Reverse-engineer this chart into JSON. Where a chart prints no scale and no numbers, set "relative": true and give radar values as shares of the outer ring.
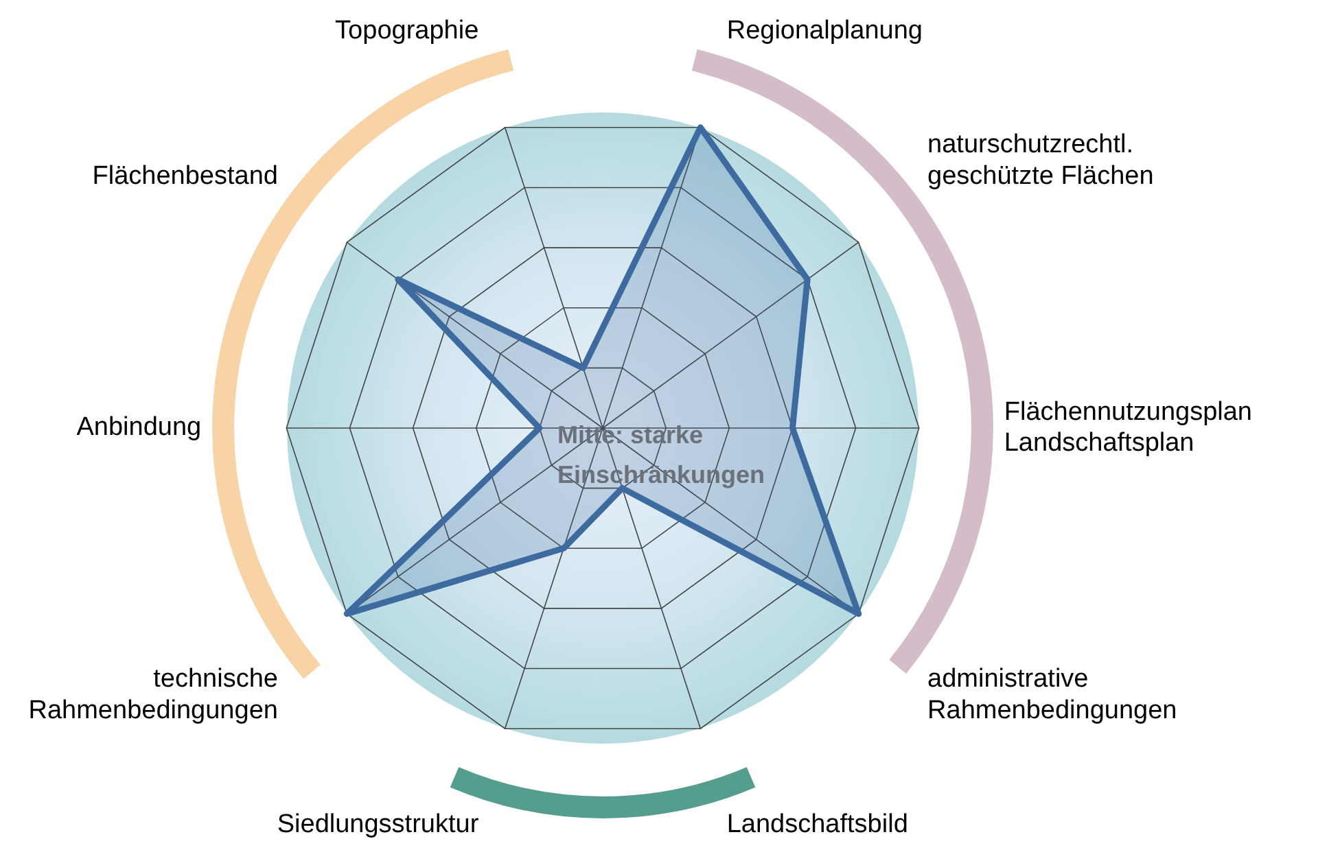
{
  "chart_data": {
    "type": "radar",
    "relative": true,
    "grid": true,
    "legend": false,
    "marker": "none",
    "categories": [
      "Regionalplanung",
      "naturschutzrechtl. geschützte Flächen",
      "Flächennutzungsplan Landschaftsplan",
      "administrative Rahmenbedingungen",
      "Landschaftsbild",
      "Siedlungsstruktur",
      "technische Rahmenbedingungen",
      "Anbindung",
      "Flächenbestand",
      "Topographie"
    ],
    "series": [
      {
        "color": "#3d6a9f",
        "values": [
          1.0,
          0.8,
          0.6,
          1.0,
          0.2,
          0.4,
          1.0,
          0.2,
          0.8,
          0.2
        ]
      }
    ],
    "annotations": [
      "Mitte: starke Einschränkungen"
    ]
  }
}
